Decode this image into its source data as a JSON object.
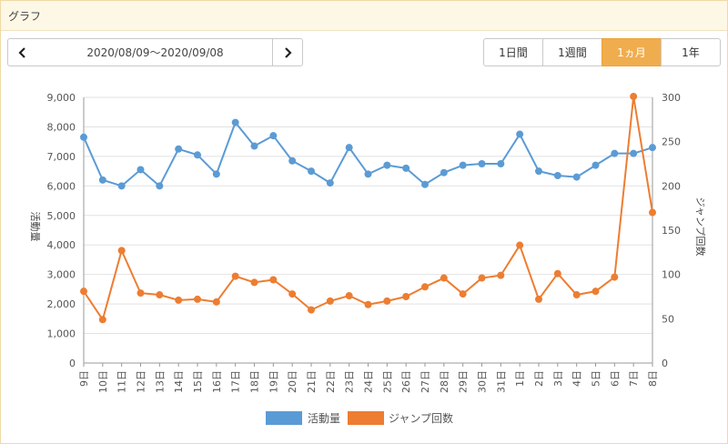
{
  "panel": {
    "title": "グラフ"
  },
  "nav": {
    "prev_icon": "chevron-left-icon",
    "next_icon": "chevron-right-icon",
    "date_range": "2020/08/09〜2020/09/08"
  },
  "period_tabs": [
    {
      "label": "1日間",
      "active": false
    },
    {
      "label": "1週間",
      "active": false
    },
    {
      "label": "1ヵ月",
      "active": true
    },
    {
      "label": "1年",
      "active": false
    }
  ],
  "colors": {
    "activity": "#5b9bd5",
    "jump": "#ed7d31",
    "active_tab": "#f0ad4e"
  },
  "chart_data": {
    "type": "line",
    "categories": [
      "9日",
      "10日",
      "11日",
      "12日",
      "13日",
      "14日",
      "15日",
      "16日",
      "17日",
      "18日",
      "19日",
      "20日",
      "21日",
      "22日",
      "23日",
      "24日",
      "25日",
      "26日",
      "27日",
      "28日",
      "29日",
      "30日",
      "31日",
      "1日",
      "2日",
      "3日",
      "4日",
      "5日",
      "6日",
      "7日",
      "8日"
    ],
    "series": [
      {
        "name": "活動量",
        "axis": "left",
        "color": "#5b9bd5",
        "values": [
          7650,
          6200,
          6000,
          6550,
          6000,
          7250,
          7050,
          6400,
          8150,
          7350,
          7700,
          6850,
          6500,
          6100,
          7300,
          6400,
          6700,
          6600,
          6050,
          6450,
          6700,
          6750,
          6750,
          7750,
          6500,
          6350,
          6300,
          6700,
          7100,
          7100,
          7300
        ]
      },
      {
        "name": "ジャンプ回数",
        "axis": "right",
        "color": "#ed7d31",
        "values": [
          81,
          49,
          127,
          79,
          77,
          71,
          72,
          69,
          98,
          91,
          94,
          78,
          60,
          70,
          76,
          66,
          70,
          75,
          86,
          96,
          78,
          96,
          99,
          133,
          72,
          101,
          77,
          81,
          97,
          301,
          170
        ]
      }
    ],
    "y_left": {
      "label": "活動量",
      "min": 0,
      "max": 9000,
      "ticks": [
        "0",
        "1,000",
        "2,000",
        "3,000",
        "4,000",
        "5,000",
        "6,000",
        "7,000",
        "8,000",
        "9,000"
      ]
    },
    "y_right": {
      "label": "ジャンプ回数",
      "min": 0,
      "max": 300,
      "ticks": [
        "0",
        "50",
        "100",
        "150",
        "200",
        "250",
        "300"
      ]
    },
    "grid": true,
    "legend_position": "bottom-center"
  }
}
